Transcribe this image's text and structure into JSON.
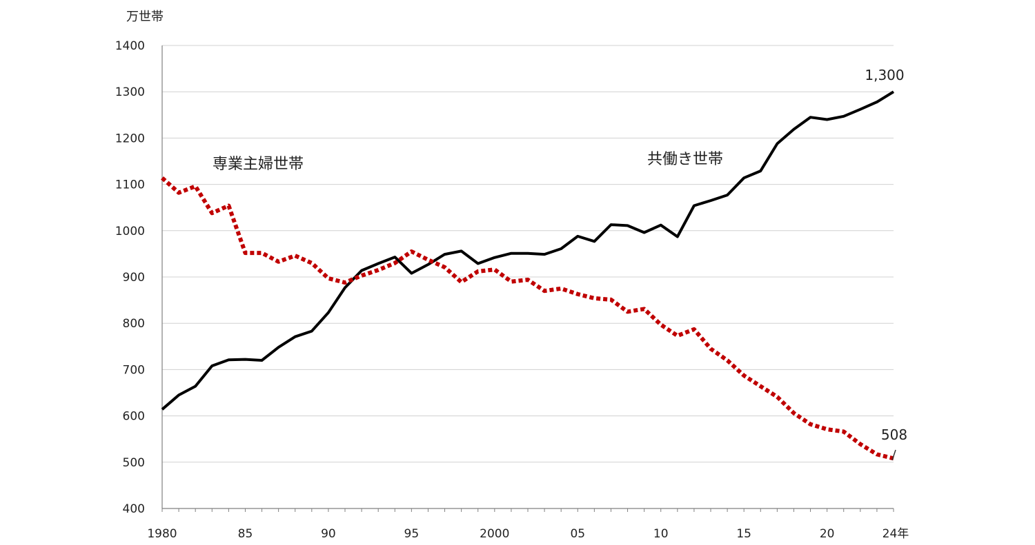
{
  "chart_data": {
    "type": "line",
    "ylabel": "万世帯",
    "ylim": [
      400,
      1400
    ],
    "yticks": [
      400,
      500,
      600,
      700,
      800,
      900,
      1000,
      1100,
      1200,
      1300,
      1400
    ],
    "xlim": [
      1980,
      2024
    ],
    "xtick_labels": [
      {
        "x": 1980,
        "label": "1980"
      },
      {
        "x": 1985,
        "label": "85"
      },
      {
        "x": 1990,
        "label": "90"
      },
      {
        "x": 1995,
        "label": "95"
      },
      {
        "x": 2000,
        "label": "2000"
      },
      {
        "x": 2005,
        "label": "05"
      },
      {
        "x": 2010,
        "label": "10"
      },
      {
        "x": 2015,
        "label": "15"
      },
      {
        "x": 2020,
        "label": "20"
      },
      {
        "x": 2024,
        "label": "24年"
      }
    ],
    "grid": "horizontal",
    "x": [
      1980,
      1981,
      1982,
      1983,
      1984,
      1985,
      1986,
      1987,
      1988,
      1989,
      1990,
      1991,
      1992,
      1993,
      1994,
      1995,
      1996,
      1997,
      1998,
      1999,
      2000,
      2001,
      2002,
      2003,
      2004,
      2005,
      2006,
      2007,
      2008,
      2009,
      2010,
      2011,
      2012,
      2013,
      2014,
      2015,
      2016,
      2017,
      2018,
      2019,
      2020,
      2021,
      2022,
      2023,
      2024
    ],
    "series": [
      {
        "name": "共働き世帯",
        "color": "#000000",
        "style": "solid",
        "values": [
          614,
          645,
          664,
          708,
          721,
          722,
          720,
          748,
          771,
          783,
          823,
          877,
          914,
          929,
          943,
          908,
          927,
          949,
          956,
          929,
          942,
          951,
          951,
          949,
          961,
          988,
          977,
          1013,
          1011,
          996,
          1012,
          987,
          1054,
          1065,
          1077,
          1114,
          1129,
          1188,
          1219,
          1245,
          1240,
          1247,
          1262,
          1278,
          1300
        ]
      },
      {
        "name": "専業主婦世帯",
        "color": "#c00000",
        "style": "dotted",
        "values": [
          1114,
          1082,
          1096,
          1038,
          1054,
          952,
          952,
          933,
          946,
          930,
          897,
          888,
          903,
          915,
          930,
          955,
          937,
          921,
          889,
          912,
          916,
          890,
          894,
          870,
          875,
          863,
          854,
          851,
          825,
          831,
          797,
          773,
          787,
          745,
          720,
          687,
          664,
          641,
          606,
          582,
          571,
          566,
          539,
          517,
          508
        ]
      }
    ],
    "end_labels": [
      {
        "series": "共働き世帯",
        "text": "1,300"
      },
      {
        "series": "専業主婦世帯",
        "text": "508"
      }
    ]
  }
}
